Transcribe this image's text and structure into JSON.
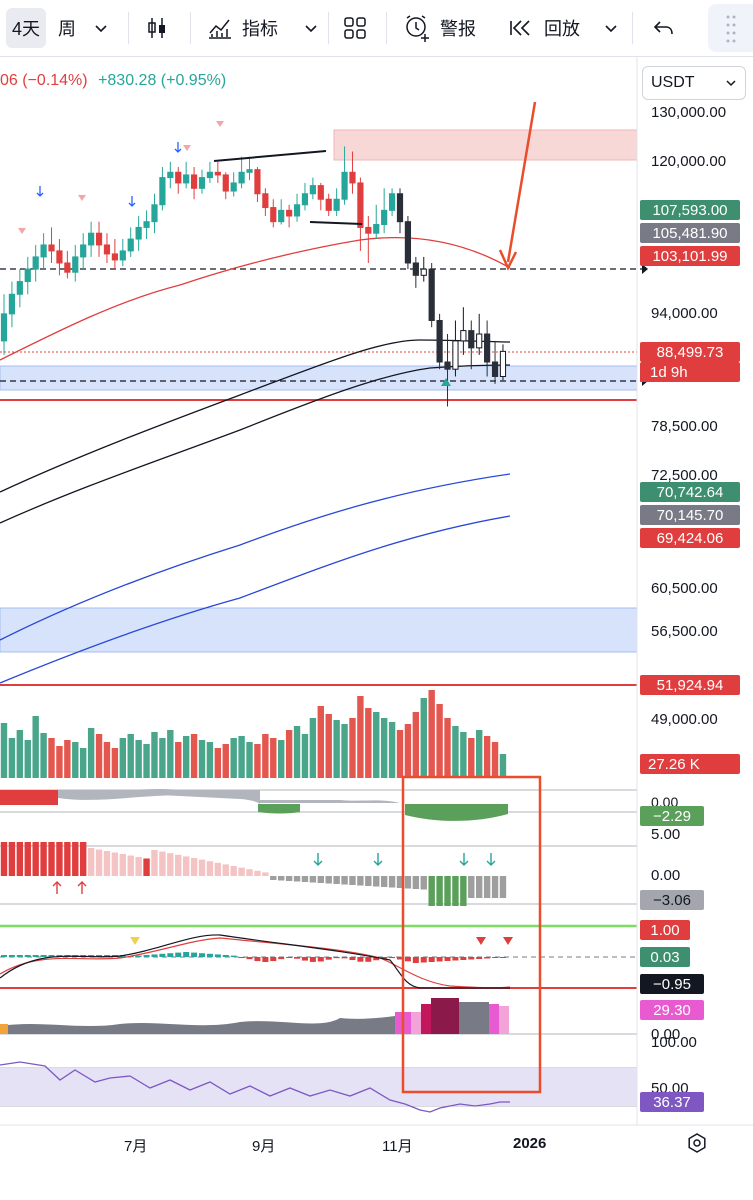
{
  "toolbar": {
    "interval_label": "4天",
    "week_label": "周",
    "indicators_label": "指标",
    "alert_label": "警报",
    "replay_label": "回放",
    "icons": [
      "chevron-down-icon",
      "candles-icon",
      "indicators-icon",
      "layout-icon",
      "alarm-icon",
      "replay-icon",
      "undo-icon",
      "drag-handle-icon"
    ]
  },
  "header": {
    "change_left": "06 (−0.14%)",
    "change_right": "+830.28 (+0.95%)",
    "currency": "USDT",
    "colors": {
      "down": "#e03e3e",
      "up": "#26a69a"
    }
  },
  "chart_data": {
    "type": "candlestick",
    "symbol_currency": "USDT",
    "y_ticks": [
      "130,000.00",
      "120,000.00",
      "94,000.00",
      "78,500.00",
      "72,500.00",
      "60,500.00",
      "56,500.00",
      "49,000.00"
    ],
    "x_labels": [
      "7月",
      "9月",
      "11月",
      "2026"
    ],
    "price_labels": [
      {
        "value": "107,593.00",
        "color": "#3e8f6f"
      },
      {
        "value": "105,481.90",
        "color": "#787b86"
      },
      {
        "value": "103,101.99",
        "color": "#e03e3e"
      },
      {
        "value": "88,499.73",
        "color": "#e03e3e"
      },
      {
        "value": "1d 9h",
        "color": "#e03e3e"
      },
      {
        "value": "70,742.64",
        "color": "#3e8f6f"
      },
      {
        "value": "70,145.70",
        "color": "#787b86"
      },
      {
        "value": "69,424.06",
        "color": "#e03e3e"
      },
      {
        "value": "51,924.94",
        "color": "#e03e3e"
      },
      {
        "value": "27.26 K",
        "color": "#e03e3e"
      }
    ],
    "candles": [
      [
        90000,
        94000,
        88000,
        97000
      ],
      [
        94000,
        97000,
        92000,
        99000
      ],
      [
        97000,
        99000,
        95000,
        101000
      ],
      [
        99000,
        101000,
        97000,
        103000
      ],
      [
        101000,
        103000,
        99000,
        105000
      ],
      [
        103000,
        105000,
        101000,
        107000
      ],
      [
        105000,
        104000,
        102000,
        108000
      ],
      [
        104000,
        102000,
        100000,
        106000
      ],
      [
        102000,
        100500,
        99500,
        104000
      ],
      [
        100500,
        103000,
        99000,
        105000
      ],
      [
        103000,
        105000,
        101000,
        107000
      ],
      [
        105000,
        107000,
        103000,
        109000
      ],
      [
        107000,
        105000,
        103000,
        109000
      ],
      [
        105000,
        103500,
        102000,
        107000
      ],
      [
        103500,
        102500,
        101000,
        106000
      ],
      [
        102500,
        104000,
        101500,
        106000
      ],
      [
        104000,
        106000,
        103000,
        108000
      ],
      [
        106000,
        108000,
        104000,
        110000
      ],
      [
        108000,
        109000,
        106000,
        111000
      ],
      [
        109000,
        112000,
        107000,
        114000
      ],
      [
        112000,
        117000,
        111000,
        119000
      ],
      [
        117000,
        118000,
        115000,
        120000
      ],
      [
        118000,
        116000,
        114000,
        119000
      ],
      [
        116000,
        117500,
        115000,
        120000
      ],
      [
        117500,
        115000,
        113000,
        119000
      ],
      [
        115000,
        117000,
        114000,
        118500
      ],
      [
        117000,
        118000,
        116000,
        120000
      ],
      [
        118000,
        117500,
        116000,
        120000
      ],
      [
        117500,
        114500,
        113000,
        118000
      ],
      [
        114500,
        116000,
        113500,
        118000
      ],
      [
        116000,
        118000,
        115000,
        121000
      ],
      [
        118000,
        118500,
        116500,
        121000
      ],
      [
        118500,
        114000,
        112500,
        119000
      ],
      [
        114000,
        111500,
        110000,
        115000
      ],
      [
        111500,
        109000,
        108000,
        113000
      ],
      [
        109000,
        111000,
        108500,
        113000
      ],
      [
        111000,
        110000,
        108000,
        112000
      ],
      [
        110000,
        112000,
        109000,
        114000
      ],
      [
        112000,
        114000,
        111000,
        116000
      ],
      [
        114000,
        115500,
        113000,
        117000
      ],
      [
        115500,
        113000,
        111000,
        116000
      ],
      [
        113000,
        111000,
        110000,
        114000
      ],
      [
        111000,
        113000,
        110000,
        115000
      ],
      [
        113000,
        118000,
        112000,
        123000
      ],
      [
        118000,
        116000,
        114000,
        122000
      ],
      [
        116000,
        108000,
        104000,
        117000
      ],
      [
        108000,
        107000,
        102000,
        110000
      ],
      [
        107000,
        108500,
        106000,
        112000
      ],
      [
        108500,
        111000,
        107000,
        115000
      ],
      [
        111000,
        114000,
        110000,
        115000
      ],
      [
        114000,
        109000,
        107000,
        115000
      ],
      [
        109000,
        102000,
        101000,
        110000
      ],
      [
        102000,
        100000,
        98000,
        103000
      ],
      [
        100000,
        101000,
        99000,
        103000
      ],
      [
        101000,
        93000,
        92000,
        102000
      ],
      [
        93000,
        87000,
        86000,
        94000
      ],
      [
        87000,
        86000,
        81000,
        91000
      ],
      [
        86000,
        90000,
        85000,
        93000
      ],
      [
        90000,
        91500,
        88000,
        95000
      ],
      [
        91500,
        89000,
        86000,
        93000
      ],
      [
        89000,
        91000,
        88000,
        94000
      ],
      [
        91000,
        87000,
        85000,
        93000
      ],
      [
        87000,
        85000,
        84000,
        90000
      ],
      [
        85000,
        88500,
        84500,
        89500
      ]
    ],
    "panes": [
      {
        "name": "volume",
        "label": "27.26 K"
      },
      {
        "name": "osc1",
        "value": "−2.29",
        "tick": "0.00"
      },
      {
        "name": "osc2",
        "value": "−3.06",
        "ticks": [
          "5.00",
          "0.00"
        ]
      },
      {
        "name": "osc3",
        "values": [
          "1.00",
          "0.03",
          "−0.95"
        ]
      },
      {
        "name": "osc4",
        "value": "29.30",
        "tick": "0.00"
      },
      {
        "name": "rsi",
        "value": "36.37",
        "ticks": [
          "100.00",
          "50.00"
        ]
      }
    ]
  }
}
